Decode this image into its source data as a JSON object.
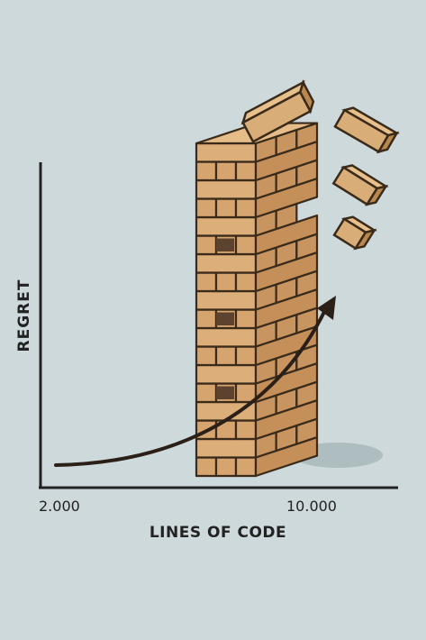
{
  "chart_data": {
    "type": "line",
    "xlabel": "LINES OF CODE",
    "ylabel": "REGRET",
    "x_tick_labels": [
      "2.000",
      "10.000"
    ],
    "xlim": [
      2000,
      10000
    ],
    "trend": "accelerating upward curve (arrow)",
    "illustration": "wooden block tower (Jenga) collapsing, blocks flying off the top"
  },
  "colors": {
    "background": "#cdd9db",
    "axis": "#222222",
    "wood": "#d9ad78",
    "outline": "#3a2a1a"
  }
}
